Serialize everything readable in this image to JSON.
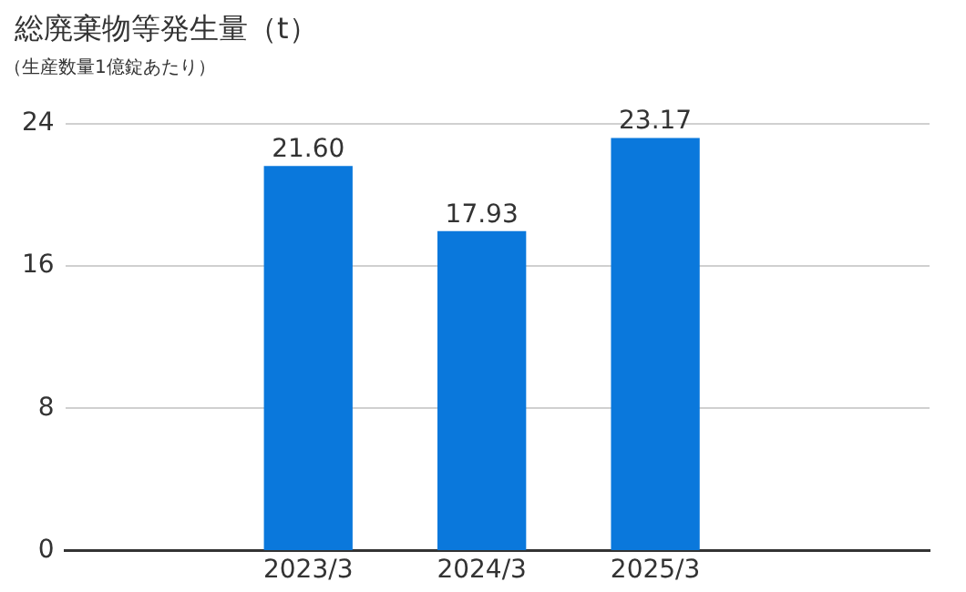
{
  "chart_data": {
    "type": "bar",
    "title": "総廃棄物等発生量（t）",
    "subtitle": "（生産数量1億錠あたり）",
    "categories": [
      "2023/3",
      "2024/3",
      "2025/3"
    ],
    "values": [
      21.6,
      17.93,
      23.17
    ],
    "color": "#0a78dc",
    "value_labels": [
      "21.60",
      "17.93",
      "23.17"
    ],
    "ylim": [
      0,
      24
    ],
    "yticks": [
      0,
      8,
      16,
      24
    ],
    "grid": "y",
    "legend": false
  }
}
